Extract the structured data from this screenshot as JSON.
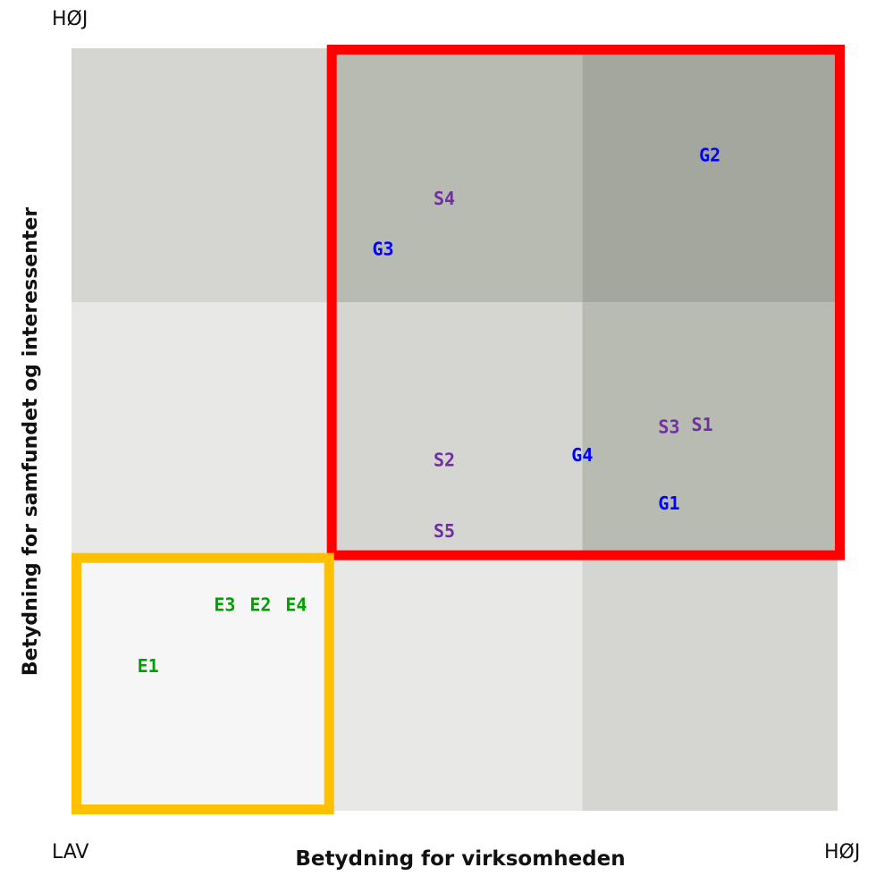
{
  "chart_data": {
    "type": "scatter",
    "title": "",
    "xlabel": "Betydning for virksomheden",
    "ylabel": "Betydning for samfundet og interessenter",
    "x_low_label": "LAV",
    "x_high_label": "HØJ",
    "y_high_label": "HØJ",
    "xlim": [
      0,
      3
    ],
    "ylim": [
      0,
      3
    ],
    "grid": "3x3",
    "cell_colors": [
      [
        "#d5d6d1",
        "#b8bbb2",
        "#a4a79e"
      ],
      [
        "#e8e8e6",
        "#d5d6d1",
        "#b8bbb2"
      ],
      [
        "#f6f6f6",
        "#e8e8e6",
        "#d5d6d1"
      ]
    ],
    "highlight_boxes": [
      {
        "name": "red",
        "color": "#ff0000",
        "x": [
          1,
          3
        ],
        "y": [
          1,
          3
        ]
      },
      {
        "name": "yellow",
        "color": "#ffc000",
        "x": [
          0,
          1
        ],
        "y": [
          0,
          1
        ]
      }
    ],
    "series": [
      {
        "name": "E",
        "color": "#00a000",
        "points": [
          {
            "label": "E1",
            "x": 0.3,
            "y": 0.57
          },
          {
            "label": "E2",
            "x": 0.74,
            "y": 0.81
          },
          {
            "label": "E3",
            "x": 0.6,
            "y": 0.81
          },
          {
            "label": "E4",
            "x": 0.88,
            "y": 0.81
          }
        ]
      },
      {
        "name": "S",
        "color": "#7030a0",
        "points": [
          {
            "label": "S1",
            "x": 2.47,
            "y": 1.52
          },
          {
            "label": "S2",
            "x": 1.46,
            "y": 1.38
          },
          {
            "label": "S3",
            "x": 2.34,
            "y": 1.51
          },
          {
            "label": "S4",
            "x": 1.46,
            "y": 2.41
          },
          {
            "label": "S5",
            "x": 1.46,
            "y": 1.1
          }
        ]
      },
      {
        "name": "G",
        "color": "#0000ff",
        "points": [
          {
            "label": "G1",
            "x": 2.34,
            "y": 1.21
          },
          {
            "label": "G2",
            "x": 2.5,
            "y": 2.58
          },
          {
            "label": "G3",
            "x": 1.22,
            "y": 2.21
          },
          {
            "label": "G4",
            "x": 2.0,
            "y": 1.4
          }
        ]
      }
    ]
  }
}
